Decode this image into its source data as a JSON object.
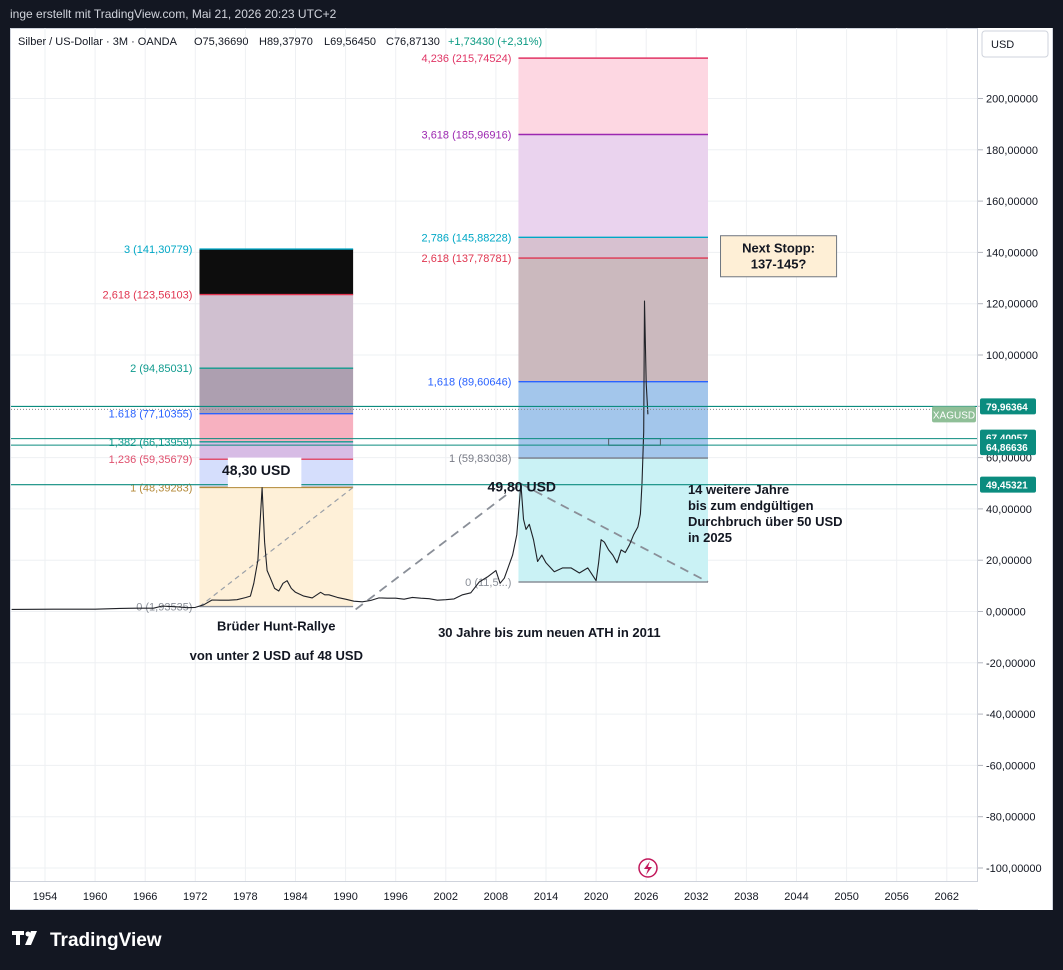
{
  "topbar": {
    "text": "inge erstellt mit TradingView.com, Mai 21, 2026 20:23 UTC+2"
  },
  "legend": {
    "symbol": "Silber / US-Dollar · 3M · OANDA",
    "open": "O75,36690",
    "high": "H89,37970",
    "low": "L69,56450",
    "close": "C76,87130",
    "change": "+1,73430 (+2,31%)"
  },
  "currency": "USD",
  "footer": {
    "brand": "TradingView"
  },
  "colors": {
    "fib1_0": "#feefd6",
    "fib1_1": "#d3dcfc",
    "fib1_2": "#d5b8e4",
    "fib1_3": "#f7adbd",
    "fib1_4": "#a99aac",
    "fib1_5": "#cdbdcd",
    "fib2_0": "#c7f1f4",
    "fib2_1": "#9ec3ea",
    "fib2_2": "#c8b5bb",
    "fib2_3": "#d5bece",
    "fib2_4": "#e9d1ed",
    "fib2_5": "#fdd5e0",
    "teal": "#1a9b8e",
    "price_line": "#0b8c7f"
  },
  "chart_data": {
    "type": "line",
    "title": "Silber / US-Dollar · 3M · OANDA",
    "xlabel": "",
    "ylabel": "USD",
    "xlim": [
      1949,
      2066
    ],
    "ylim": [
      -102,
      220
    ],
    "x_ticks": [
      "1954",
      "1960",
      "1966",
      "1972",
      "1978",
      "1984",
      "1990",
      "1996",
      "2002",
      "2008",
      "2014",
      "2020",
      "2026",
      "2032",
      "2038",
      "2044",
      "2050",
      "2056",
      "2062"
    ],
    "y_ticks": [
      "200,00000",
      "180,00000",
      "160,00000",
      "140,00000",
      "120,00000",
      "100,00000",
      "80,00000",
      "60,00000",
      "40,00000",
      "20,00000",
      "0,00000",
      "-20,00000",
      "-40,00000",
      "-60,00000",
      "-80,00000",
      "-100,00000"
    ],
    "y_tick_values": [
      200,
      180,
      160,
      140,
      120,
      100,
      80,
      60,
      40,
      20,
      0,
      -20,
      -40,
      -60,
      -80,
      -100
    ],
    "series": [
      {
        "x": [
          1950,
          1955,
          1960,
          1963,
          1965,
          1967,
          1968,
          1970,
          1971,
          1972,
          1973,
          1974,
          1975,
          1976,
          1977,
          1978,
          1978.6,
          1979,
          1979.5,
          1980.0,
          1980.3,
          1980.6,
          1981,
          1981.5,
          1982,
          1982.5,
          1983,
          1983.5,
          1984,
          1985,
          1986,
          1987,
          1987.5,
          1988,
          1989,
          1990,
          1991,
          1992,
          1993,
          1994,
          1995,
          1996,
          1997,
          1998,
          1999,
          2000,
          2001,
          2002,
          2003,
          2004,
          2005,
          2006,
          2007,
          2008,
          2008.5,
          2009,
          2010,
          2010.5,
          2011.0,
          2011.3,
          2011.6,
          2012,
          2012.5,
          2013,
          2013.5,
          2014,
          2015,
          2016,
          2017,
          2018,
          2019,
          2020,
          2020.3,
          2020.6,
          2021,
          2021.5,
          2022,
          2022.5,
          2023,
          2023.5,
          2024,
          2024.5,
          2025,
          2025.3,
          2025.5,
          2025.7,
          2025.8,
          2026.0,
          2026.2
        ],
        "y": [
          0.8,
          0.9,
          0.9,
          1.2,
          1.3,
          1.3,
          2.1,
          1.8,
          1.5,
          1.6,
          2.6,
          4.5,
          4.4,
          4.4,
          4.6,
          5.4,
          6.0,
          11.0,
          20.0,
          48.3,
          27.0,
          16.0,
          13.0,
          9.0,
          8.0,
          11.0,
          12.0,
          9.0,
          7.5,
          6.0,
          5.3,
          7.5,
          6.5,
          6.5,
          5.5,
          4.8,
          4.0,
          3.8,
          4.3,
          5.3,
          5.2,
          5.2,
          4.8,
          5.5,
          5.2,
          5.0,
          4.4,
          4.6,
          4.9,
          6.5,
          7.3,
          11.5,
          13.5,
          16.0,
          11.0,
          13.0,
          22.0,
          30.0,
          49.8,
          36.0,
          32.0,
          34.0,
          28.0,
          19.5,
          22.0,
          19.0,
          15.5,
          17.0,
          17.0,
          15.0,
          17.0,
          12.0,
          19.0,
          28.0,
          27.0,
          24.0,
          22.0,
          19.0,
          24.0,
          23.0,
          26.0,
          30.0,
          33.0,
          38.0,
          50.0,
          70.0,
          121.0,
          89.0,
          76.9
        ]
      }
    ],
    "fib_rally1": {
      "x_range": [
        1972.5,
        1990.9
      ],
      "levels": [
        {
          "ratio": "0",
          "value": 1.93535,
          "label": "0 (1,93535)",
          "color": "#8a8f98"
        },
        {
          "ratio": "1",
          "value": 48.39283,
          "label": "1 (48,39283)",
          "color": "#b48a3a"
        },
        {
          "ratio": "1.236",
          "value": 59.35679,
          "label": "1,236 (59,35679)",
          "color": "#e0506e"
        },
        {
          "ratio": "1.382",
          "value": 66.13959,
          "label": "1,382 (66,13959)",
          "color": "#0f9b8e"
        },
        {
          "ratio": "1.618",
          "value": 77.10355,
          "label": "1.618 (77,10355)",
          "color": "#2962ff"
        },
        {
          "ratio": "2",
          "value": 94.85031,
          "label": "2 (94,85031)",
          "color": "#0f9b8e"
        },
        {
          "ratio": "2.618",
          "value": 123.56103,
          "label": "2,618 (123,56103)",
          "color": "#e03550"
        },
        {
          "ratio": "3",
          "value": 141.30779,
          "label": "3 (141,30779)",
          "color": "#00a8c6"
        }
      ]
    },
    "fib_rally2": {
      "x_range": [
        2010.7,
        2033.4
      ],
      "levels": [
        {
          "ratio": "0",
          "value": 11.5,
          "label": "0 (11,5...)",
          "color": "#8a8f98"
        },
        {
          "ratio": "1",
          "value": 59.83038,
          "label": "1 (59,83038)",
          "color": "#787b86"
        },
        {
          "ratio": "1.618",
          "value": 89.60646,
          "label": "1,618 (89,60646)",
          "color": "#2962ff"
        },
        {
          "ratio": "2.618",
          "value": 137.78781,
          "label": "2,618 (137,78781)",
          "color": "#e03550"
        },
        {
          "ratio": "2.786",
          "value": 145.88228,
          "label": "2,786 (145,88228)",
          "color": "#00a8c6"
        },
        {
          "ratio": "3.618",
          "value": 185.96916,
          "label": "3,618 (185,96916)",
          "color": "#9c27b0"
        },
        {
          "ratio": "4.236",
          "value": 215.74524,
          "label": "4,236 (215,74524)",
          "color": "#e03565"
        }
      ]
    },
    "horizontal_lines": [
      {
        "value": 79.96364,
        "label": "79,96364"
      },
      {
        "value": 67.40057,
        "label": "67,40057"
      },
      {
        "value": 64.86636,
        "label": "64,86636"
      },
      {
        "value": 49.45321,
        "label": "49,45321"
      }
    ],
    "price_tag": {
      "label": "XAGUSD",
      "value": 79.96364
    },
    "annotations": [
      {
        "text": "48,30 USD",
        "x": 1979.3,
        "y": 53.3
      },
      {
        "text": "49,80 USD",
        "x": 2011.1,
        "y": 46.7
      },
      {
        "text": "Brüder Hunt-Rallye",
        "x": 1981.7,
        "y": -7.5
      },
      {
        "text": "von unter 2 USD auf 48 USD",
        "x": 1981.7,
        "y": -19
      },
      {
        "text": "30 Jahre bis zum neuen ATH in 2011",
        "x": 2014.4,
        "y": -10
      },
      {
        "lines": [
          "14 weitere Jahre",
          "bis zum endgültigen",
          "Durchbruch über 50 USD",
          " in 2025"
        ],
        "x": 2031,
        "y": 45.9
      },
      {
        "lines": [
          "Next Stopp:",
          "137-145?"
        ],
        "x": 2038.8,
        "y": 138
      }
    ]
  }
}
